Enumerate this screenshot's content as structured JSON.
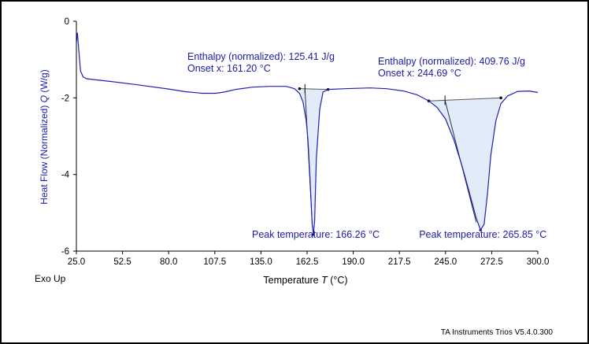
{
  "chart_data": {
    "type": "line",
    "title": "",
    "xlabel": "Temperature",
    "xlabel_symbol": "T",
    "xlabel_unit": "(°C)",
    "ylabel": "Heat Flow (Normalized)",
    "ylabel_symbol": "Q",
    "ylabel_unit": "(W/g)",
    "xlim": [
      25.0,
      300.0
    ],
    "ylim": [
      -6,
      0
    ],
    "xticks": [
      25.0,
      52.5,
      80.0,
      107.5,
      135.0,
      162.5,
      190.0,
      217.5,
      245.0,
      272.5,
      300.0
    ],
    "xtick_labels": [
      "25.0",
      "52.5",
      "80.0",
      "107.5",
      "135.0",
      "162.5",
      "190.0",
      "217.5",
      "245.0",
      "272.5",
      "300.0"
    ],
    "yticks": [
      0,
      -2,
      -4,
      -6
    ],
    "ytick_labels": [
      "0",
      "-2",
      "-4",
      "-6"
    ],
    "grid": false,
    "legend": "none",
    "series": [
      {
        "color": "#2020b8",
        "x": [
          25.0,
          25.6,
          26.5,
          27.5,
          29,
          31,
          35,
          45,
          60,
          80,
          90,
          100,
          108,
          113,
          120,
          130,
          140,
          150,
          155,
          158,
          160,
          162,
          163,
          164,
          165,
          165.5,
          166.26,
          167,
          168,
          170,
          172,
          175,
          185,
          200,
          210,
          220,
          228,
          235,
          240,
          245,
          250,
          255,
          260,
          263,
          265.85,
          268,
          270,
          272,
          275,
          278,
          282,
          288,
          295,
          300
        ],
        "y": [
          -0.55,
          -0.3,
          -0.8,
          -1.3,
          -1.45,
          -1.5,
          -1.52,
          -1.57,
          -1.65,
          -1.77,
          -1.84,
          -1.88,
          -1.88,
          -1.85,
          -1.78,
          -1.72,
          -1.7,
          -1.7,
          -1.76,
          -1.88,
          -2.1,
          -2.6,
          -3.1,
          -3.9,
          -4.8,
          -5.3,
          -5.57,
          -5.2,
          -3.6,
          -2.3,
          -1.85,
          -1.78,
          -1.76,
          -1.74,
          -1.76,
          -1.82,
          -1.92,
          -2.08,
          -2.25,
          -2.55,
          -3.1,
          -3.8,
          -4.6,
          -5.1,
          -5.45,
          -5.3,
          -4.5,
          -3.5,
          -2.6,
          -2.15,
          -1.95,
          -1.83,
          -1.82,
          -1.86
        ]
      }
    ],
    "peaks": [
      {
        "integration_start": [
          158.0,
          -1.76
        ],
        "integration_end": [
          175.0,
          -1.78
        ],
        "onset_x": 161.2,
        "peak_x": 166.26,
        "peak_y": -5.57,
        "enthalpy_label": "Enthalpy (normalized): 125.41 J/g",
        "onset_label": "Onset x: 161.20 °C",
        "peak_label": "Peak temperature: 166.26 °C"
      },
      {
        "integration_start": [
          235.0,
          -2.08
        ],
        "integration_end": [
          278.0,
          -2.0
        ],
        "onset_x": 244.69,
        "peak_x": 265.85,
        "peak_y": -5.45,
        "enthalpy_label": "Enthalpy (normalized): 409.76 J/g",
        "onset_label": "Onset x: 244.69 °C",
        "peak_label": "Peak temperature: 265.85 °C"
      }
    ]
  },
  "exo_up_label": "Exo Up",
  "software_label": "TA Instruments Trios V5.4.0.300"
}
